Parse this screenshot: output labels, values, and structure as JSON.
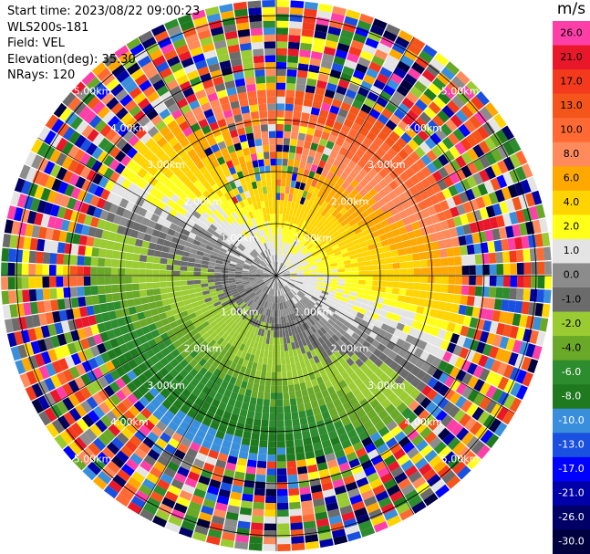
{
  "header": {
    "start_time": "Start time: 2023/08/22 09:00:23",
    "instrument": "WLS200s-181",
    "field": "Field: VEL",
    "elevation": "Elevation(deg): 35.30",
    "nrays": "NRays: 120"
  },
  "chart_data": {
    "type": "polar-ppi",
    "field": "VEL",
    "unit": "m/s",
    "nrays": 120,
    "elevation_deg": 35.3,
    "range_rings_km": [
      1.0,
      2.0,
      3.0,
      4.0,
      5.0
    ],
    "ring_labels": [
      "1.00km",
      "2.00km",
      "3.00km",
      "4.00km",
      "5.00km"
    ],
    "max_range_km": 5.3,
    "spokes_deg": [
      0,
      30,
      60,
      90,
      120,
      150,
      180,
      210,
      240,
      270,
      300,
      330
    ],
    "colorbar": {
      "tick_labels": [
        "26.0",
        "21.0",
        "17.0",
        "13.0",
        "10.0",
        "8.0",
        "6.0",
        "4.0",
        "2.0",
        "1.0",
        "0.0",
        "-1.0",
        "-2.0",
        "-4.0",
        "-6.0",
        "-8.0",
        "-10.0",
        "-13.0",
        "-17.0",
        "-21.0",
        "-26.0",
        "-30.0"
      ],
      "colors": [
        "#ff3fa8",
        "#e8182a",
        "#f33a1c",
        "#f4551a",
        "#ff6a34",
        "#ff8a5c",
        "#ffa800",
        "#ffd400",
        "#ffff1a",
        "#e4e4e4",
        "#8c8c8c",
        "#6b6b6b",
        "#9acb32",
        "#6aa828",
        "#2d8c2d",
        "#1f7a1f",
        "#3a8fdc",
        "#1a50e0",
        "#0000ff",
        "#0000a8",
        "#000066",
        "#000040"
      ]
    },
    "velocity_profile": [
      {
        "range_km": 0.2,
        "u": 0.5,
        "v": 0.0
      },
      {
        "range_km": 0.8,
        "u": 1.0,
        "v": 1.5
      },
      {
        "range_km": 1.3,
        "u": 2.0,
        "v": 3.0
      },
      {
        "range_km": 1.9,
        "u": 3.0,
        "v": 5.0
      },
      {
        "range_km": 2.5,
        "u": 4.0,
        "v": 8.0
      },
      {
        "range_km": 3.0,
        "u": 5.0,
        "v": 10.0
      },
      {
        "range_km": 3.4,
        "u": 6.0,
        "v": 12.0
      }
    ],
    "valid_range_km": 3.55
  },
  "colors": {
    "rings": "#000000",
    "ring_label": "#ffffff"
  }
}
